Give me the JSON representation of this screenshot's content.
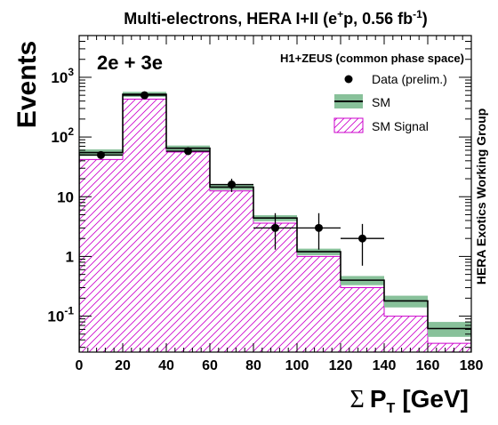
{
  "chart_data": {
    "type": "bar",
    "title_main": "Multi-electrons, HERA I+II (e",
    "title_sup1": "+",
    "title_mid": "p, 0.56 fb",
    "title_sup2": "-1",
    "title_end": ")",
    "channel_label": "2e + 3e",
    "experiment_label": "H1+ZEUS (common phase space)",
    "side_label": "HERA Exotics Working Group",
    "ylabel": "Events",
    "xlabel_symbol": "Σ",
    "xlabel_main": "P",
    "xlabel_sub": "T",
    "xlabel_unit": "[GeV]",
    "xlim": [
      0,
      180
    ],
    "ylim": [
      0.025,
      5000
    ],
    "yscale": "log",
    "x_ticks": [
      0,
      20,
      40,
      60,
      80,
      100,
      120,
      140,
      160,
      180
    ],
    "x_tick_labels": [
      "0",
      "20",
      "40",
      "60",
      "80",
      "100",
      "120",
      "140",
      "160",
      "180"
    ],
    "y_ticks": [
      {
        "value": 0.1,
        "base": "10",
        "exp": "-1"
      },
      {
        "value": 1,
        "base": "1",
        "exp": ""
      },
      {
        "value": 10,
        "base": "10",
        "exp": ""
      },
      {
        "value": 100,
        "base": "10",
        "exp": "2"
      },
      {
        "value": 1000,
        "base": "10",
        "exp": "3"
      }
    ],
    "bin_edges": [
      0,
      20,
      40,
      60,
      80,
      100,
      120,
      140,
      160,
      180
    ],
    "series": [
      {
        "name": "SM",
        "values": [
          55,
          520,
          65,
          14.5,
          4.4,
          1.2,
          0.4,
          0.18,
          0.062
        ],
        "err_low": [
          48,
          470,
          58,
          13,
          3.9,
          1.05,
          0.33,
          0.14,
          0.045
        ],
        "err_high": [
          62,
          570,
          72,
          16,
          4.9,
          1.35,
          0.47,
          0.22,
          0.08
        ],
        "color": "#000000",
        "band_color": "#88c19a"
      },
      {
        "name": "SM Signal",
        "values": [
          42,
          430,
          56,
          12.5,
          3.6,
          1.0,
          0.3,
          0.1,
          0.035
        ],
        "color": "#cc00cc",
        "hatch": true
      },
      {
        "name": "Data (prelim.)",
        "x": [
          10,
          30,
          50,
          70,
          90,
          110,
          130
        ],
        "values": [
          50,
          500,
          58,
          16,
          3,
          3,
          2
        ],
        "x_err": [
          10,
          10,
          10,
          10,
          10,
          10,
          10
        ],
        "y_err_low": [
          7,
          22,
          7.6,
          4,
          1.7,
          1.7,
          1.3
        ],
        "y_err_high": [
          7,
          22,
          7.6,
          4,
          2.3,
          2.3,
          1.5
        ],
        "color": "#000000",
        "marker": "circle"
      }
    ],
    "legend_position": "top-right",
    "legend": [
      {
        "label": "Data (prelim.)",
        "kind": "marker"
      },
      {
        "label": "SM",
        "kind": "band"
      },
      {
        "label": "SM Signal",
        "kind": "hatch"
      }
    ]
  }
}
